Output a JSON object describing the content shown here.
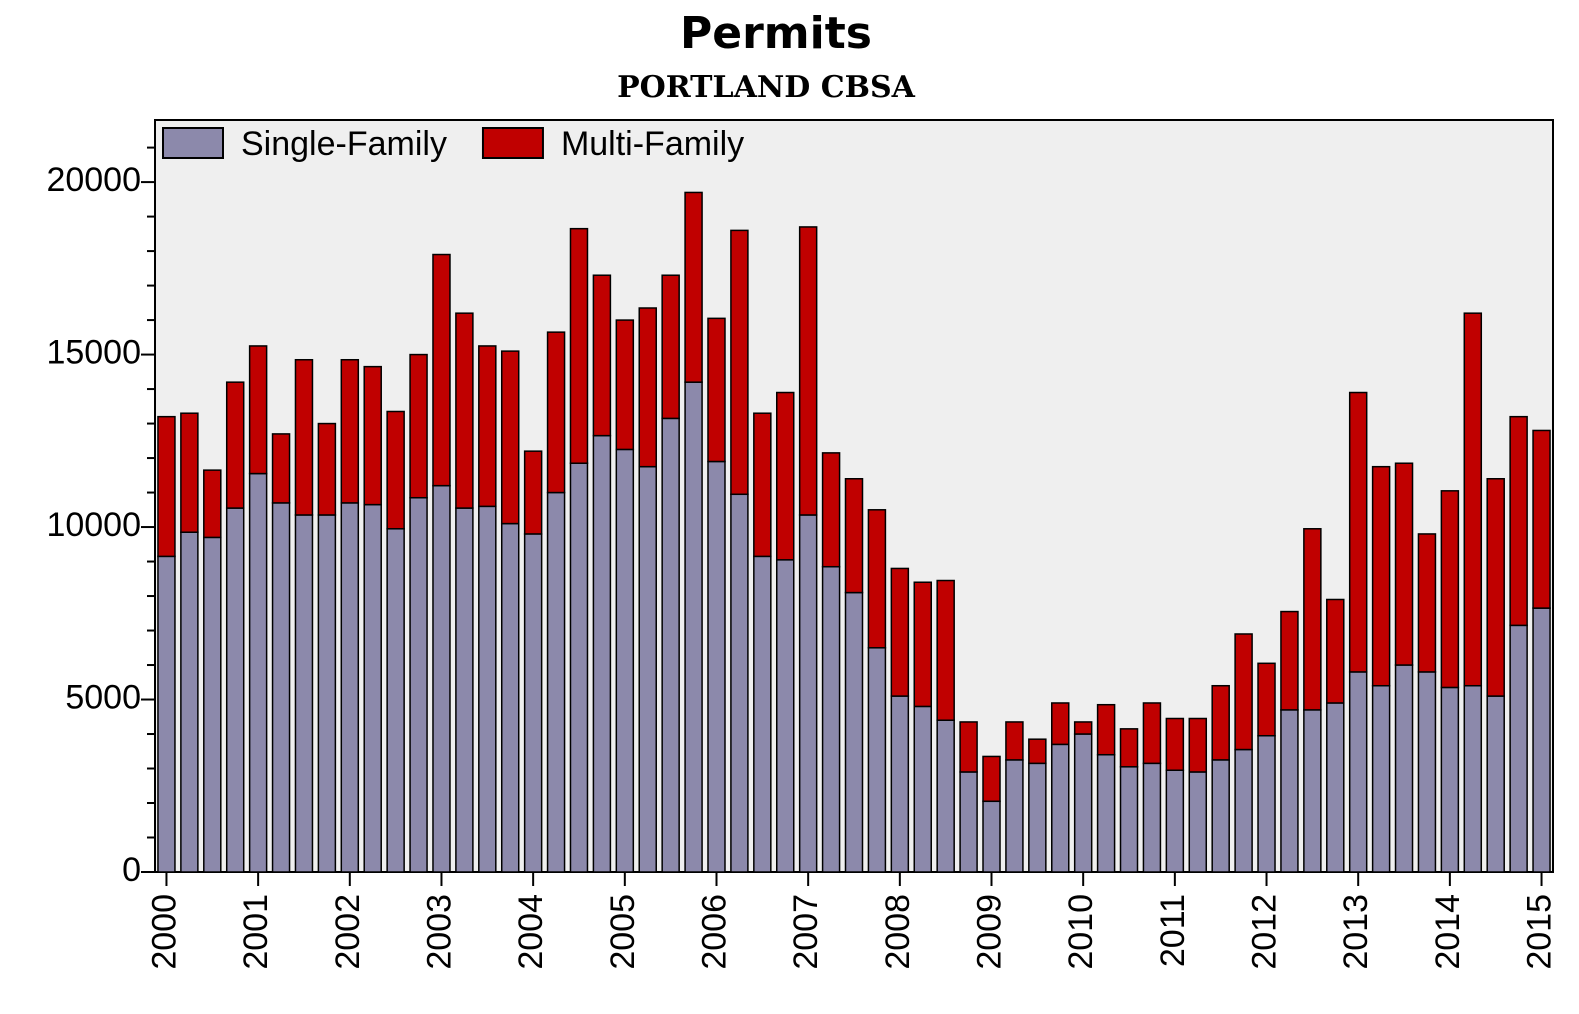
{
  "chart_data": {
    "type": "stacked_bar",
    "title": "Permits",
    "subtitle": "PORTLAND CBSA",
    "categories": [
      "2000",
      null,
      null,
      null,
      "2001",
      null,
      null,
      null,
      "2002",
      null,
      null,
      null,
      "2003",
      null,
      null,
      null,
      "2004",
      null,
      null,
      null,
      "2005",
      null,
      null,
      null,
      "2006",
      null,
      null,
      null,
      "2007",
      null,
      null,
      null,
      "2008",
      null,
      null,
      null,
      "2009",
      null,
      null,
      null,
      "2010",
      null,
      null,
      null,
      "2011",
      null,
      null,
      null,
      "2012",
      null,
      null,
      null,
      "2013",
      null,
      null,
      null,
      "2014",
      null,
      null,
      null,
      "2015"
    ],
    "series": [
      {
        "name": "Single-Family",
        "color": "#8c89ab",
        "values": [
          9150,
          9850,
          9700,
          10550,
          11550,
          10700,
          10350,
          10350,
          10700,
          10650,
          9950,
          10850,
          11200,
          10550,
          10600,
          10100,
          9800,
          11000,
          11850,
          12650,
          12250,
          11750,
          13150,
          14200,
          11900,
          10950,
          9150,
          9050,
          10350,
          8850,
          8100,
          6500,
          5100,
          4800,
          4400,
          2900,
          2050,
          3250,
          3150,
          3700,
          4000,
          3400,
          3050,
          3150,
          2950,
          2900,
          3250,
          3550,
          3950,
          4700,
          4700,
          4900,
          5800,
          5400,
          6000,
          5800,
          5350,
          5400,
          5100,
          7150,
          7650
        ]
      },
      {
        "name": "Multi-Family",
        "color": "#c00000",
        "values": [
          4050,
          3450,
          1950,
          3650,
          3700,
          2000,
          4500,
          2650,
          4150,
          4000,
          3400,
          4150,
          6700,
          5650,
          4650,
          5000,
          2400,
          4650,
          6800,
          4650,
          3750,
          4600,
          4150,
          5500,
          4150,
          7650,
          4150,
          4850,
          8350,
          3300,
          3300,
          4000,
          3700,
          3600,
          4050,
          1450,
          1300,
          1100,
          700,
          1200,
          350,
          1450,
          1100,
          1750,
          1500,
          1550,
          2150,
          3350,
          2100,
          2850,
          5250,
          3000,
          8100,
          6350,
          5850,
          4000,
          5700,
          10800,
          6300,
          6050,
          5150
        ]
      }
    ],
    "ylim": [
      0,
      21800
    ],
    "yticks": [
      0,
      5000,
      10000,
      15000,
      20000
    ],
    "yticks_minor": [
      1000,
      2000,
      3000,
      4000,
      6000,
      7000,
      8000,
      9000,
      11000,
      12000,
      13000,
      14000,
      16000,
      17000,
      18000,
      19000,
      21000
    ],
    "legend": "top-left"
  }
}
